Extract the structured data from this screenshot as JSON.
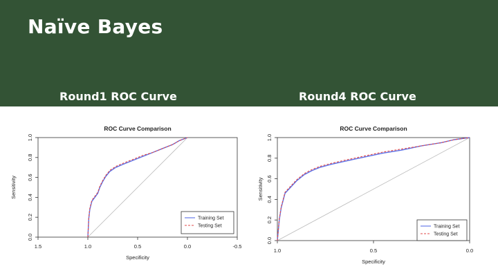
{
  "slide": {
    "title": "Naïve Bayes",
    "subtitle_left": "Round1 ROC Curve",
    "subtitle_right": "Round4 ROC Curve",
    "banner_color": "#335335"
  },
  "chart_data": [
    {
      "type": "line",
      "title": "ROC Curve Comparison",
      "xlabel": "Specificity",
      "ylabel": "Sensitivity",
      "xlim": [
        1.5,
        -0.5
      ],
      "ylim": [
        0.0,
        1.0
      ],
      "x_ticks": [
        "1.5",
        "1.0",
        "0.5",
        "0.0",
        "-0.5"
      ],
      "y_ticks": [
        "0.0",
        "0.2",
        "0.4",
        "0.6",
        "0.8",
        "1.0"
      ],
      "legend": {
        "position": "bottom-right",
        "entries": [
          "Training Set",
          "Testing Set"
        ]
      },
      "series": [
        {
          "name": "Training Set",
          "color": "#5a6ee6",
          "style": "solid",
          "x": [
            1.0,
            0.99,
            0.98,
            0.96,
            0.93,
            0.9,
            0.88,
            0.85,
            0.82,
            0.78,
            0.72,
            0.65,
            0.55,
            0.45,
            0.35,
            0.25,
            0.15,
            0.08,
            0.0
          ],
          "y": [
            0.0,
            0.19,
            0.28,
            0.36,
            0.4,
            0.44,
            0.5,
            0.56,
            0.61,
            0.66,
            0.7,
            0.73,
            0.77,
            0.81,
            0.85,
            0.89,
            0.93,
            0.97,
            1.0
          ]
        },
        {
          "name": "Testing Set",
          "color": "#e24a4a",
          "style": "dashed",
          "x": [
            1.0,
            0.99,
            0.98,
            0.96,
            0.93,
            0.9,
            0.88,
            0.85,
            0.82,
            0.78,
            0.72,
            0.65,
            0.55,
            0.45,
            0.35,
            0.25,
            0.15,
            0.08,
            0.0
          ],
          "y": [
            0.0,
            0.2,
            0.29,
            0.37,
            0.41,
            0.45,
            0.51,
            0.57,
            0.62,
            0.67,
            0.71,
            0.74,
            0.78,
            0.82,
            0.85,
            0.89,
            0.93,
            0.97,
            1.0
          ]
        }
      ]
    },
    {
      "type": "line",
      "title": "ROC Curve Comparison",
      "xlabel": "Specificity",
      "ylabel": "Sensitivity",
      "xlim": [
        1.0,
        0.0
      ],
      "ylim": [
        0.0,
        1.0
      ],
      "x_ticks": [
        "1.0",
        "0.5",
        "0.0"
      ],
      "y_ticks": [
        "0.0",
        "0.2",
        "0.4",
        "0.6",
        "0.8",
        "1.0"
      ],
      "legend": {
        "position": "bottom-right",
        "entries": [
          "Training Set",
          "Testing Set"
        ]
      },
      "series": [
        {
          "name": "Training Set",
          "color": "#5a6ee6",
          "style": "solid",
          "x": [
            1.0,
            0.99,
            0.98,
            0.96,
            0.93,
            0.9,
            0.86,
            0.82,
            0.78,
            0.72,
            0.65,
            0.55,
            0.45,
            0.35,
            0.25,
            0.15,
            0.08,
            0.0
          ],
          "y": [
            0.0,
            0.2,
            0.32,
            0.46,
            0.52,
            0.58,
            0.64,
            0.68,
            0.71,
            0.74,
            0.77,
            0.81,
            0.85,
            0.88,
            0.92,
            0.95,
            0.98,
            1.0
          ]
        },
        {
          "name": "Testing Set",
          "color": "#e24a4a",
          "style": "dashed",
          "x": [
            1.0,
            0.99,
            0.98,
            0.96,
            0.93,
            0.9,
            0.86,
            0.82,
            0.78,
            0.72,
            0.65,
            0.55,
            0.45,
            0.35,
            0.25,
            0.15,
            0.08,
            0.0
          ],
          "y": [
            0.0,
            0.21,
            0.33,
            0.47,
            0.53,
            0.59,
            0.65,
            0.69,
            0.72,
            0.75,
            0.78,
            0.82,
            0.86,
            0.89,
            0.92,
            0.95,
            0.98,
            1.0
          ]
        }
      ]
    }
  ]
}
